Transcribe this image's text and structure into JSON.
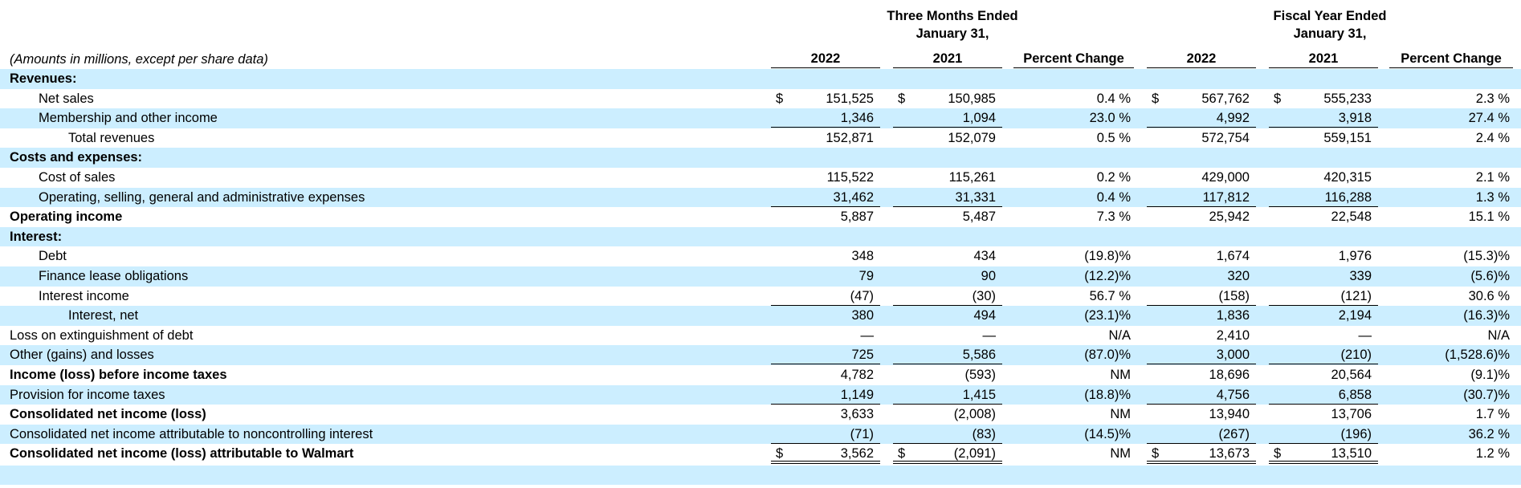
{
  "headers": {
    "three_months_line1": "Three Months Ended",
    "three_months_line2": "January 31,",
    "fiscal_year_line1": "Fiscal Year Ended",
    "fiscal_year_line2": "January 31,",
    "note": "(Amounts in millions, except per share data)",
    "columns": [
      "2022",
      "2021",
      "Percent Change",
      "2022",
      "2021",
      "Percent Change"
    ]
  },
  "rows": [
    {
      "label": "Revenues:",
      "bold": true,
      "indent": 0,
      "values": [
        "",
        "",
        "",
        "",
        "",
        ""
      ]
    },
    {
      "label": "Net sales",
      "indent": 1,
      "dollar": [
        true,
        true,
        false,
        true,
        true,
        false
      ],
      "values": [
        "151,525",
        "150,985",
        "0.4 %",
        "567,762",
        "555,233",
        "2.3 %"
      ]
    },
    {
      "label": "Membership and other income",
      "indent": 1,
      "rule": "single",
      "values": [
        "1,346",
        "1,094",
        "23.0 %",
        "4,992",
        "3,918",
        "27.4 %"
      ]
    },
    {
      "label": "Total revenues",
      "indent": 2,
      "values": [
        "152,871",
        "152,079",
        "0.5 %",
        "572,754",
        "559,151",
        "2.4 %"
      ]
    },
    {
      "label": "Costs and expenses:",
      "bold": true,
      "indent": 0,
      "values": [
        "",
        "",
        "",
        "",
        "",
        ""
      ]
    },
    {
      "label": "Cost of sales",
      "indent": 1,
      "values": [
        "115,522",
        "115,261",
        "0.2 %",
        "429,000",
        "420,315",
        "2.1 %"
      ]
    },
    {
      "label": "Operating, selling, general and administrative expenses",
      "indent": 1,
      "rule": "single",
      "values": [
        "31,462",
        "31,331",
        "0.4 %",
        "117,812",
        "116,288",
        "1.3 %"
      ]
    },
    {
      "label": "Operating income",
      "bold": true,
      "indent": 0,
      "values": [
        "5,887",
        "5,487",
        "7.3 %",
        "25,942",
        "22,548",
        "15.1 %"
      ]
    },
    {
      "label": "Interest:",
      "bold": true,
      "indent": 0,
      "values": [
        "",
        "",
        "",
        "",
        "",
        ""
      ]
    },
    {
      "label": "Debt",
      "indent": 1,
      "values": [
        "348",
        "434",
        "(19.8)%",
        "1,674",
        "1,976",
        "(15.3)%"
      ]
    },
    {
      "label": "Finance lease obligations",
      "indent": 1,
      "values": [
        "79",
        "90",
        "(12.2)%",
        "320",
        "339",
        "(5.6)%"
      ]
    },
    {
      "label": "Interest income",
      "indent": 1,
      "rule": "single",
      "values": [
        "(47)",
        "(30)",
        "56.7 %",
        "(158)",
        "(121)",
        "30.6 %"
      ]
    },
    {
      "label": "Interest, net",
      "indent": 2,
      "values": [
        "380",
        "494",
        "(23.1)%",
        "1,836",
        "2,194",
        "(16.3)%"
      ]
    },
    {
      "label": "Loss on extinguishment of debt",
      "indent": 0,
      "values": [
        "—",
        "—",
        "N/A",
        "2,410",
        "—",
        "N/A"
      ]
    },
    {
      "label": "Other (gains) and losses",
      "indent": 0,
      "rule": "single",
      "values": [
        "725",
        "5,586",
        "(87.0)%",
        "3,000",
        "(210)",
        "(1,528.6)%"
      ]
    },
    {
      "label": "Income (loss) before income taxes",
      "bold": true,
      "indent": 0,
      "values": [
        "4,782",
        "(593)",
        "NM",
        "18,696",
        "20,564",
        "(9.1)%"
      ]
    },
    {
      "label": "Provision for income taxes",
      "indent": 0,
      "rule": "single",
      "values": [
        "1,149",
        "1,415",
        "(18.8)%",
        "4,756",
        "6,858",
        "(30.7)%"
      ]
    },
    {
      "label": "Consolidated net income (loss)",
      "bold": true,
      "indent": 0,
      "values": [
        "3,633",
        "(2,008)",
        "NM",
        "13,940",
        "13,706",
        "1.7 %"
      ]
    },
    {
      "label": "Consolidated net income attributable to noncontrolling interest",
      "indent": 0,
      "rule": "single",
      "values": [
        "(71)",
        "(83)",
        "(14.5)%",
        "(267)",
        "(196)",
        "36.2 %"
      ]
    },
    {
      "label": "Consolidated net income (loss) attributable to Walmart",
      "bold": true,
      "indent": 0,
      "rule": "double",
      "dollar": [
        true,
        true,
        false,
        true,
        true,
        false
      ],
      "values": [
        "3,562",
        "(2,091)",
        "NM",
        "13,673",
        "13,510",
        "1.2 %"
      ]
    }
  ]
}
